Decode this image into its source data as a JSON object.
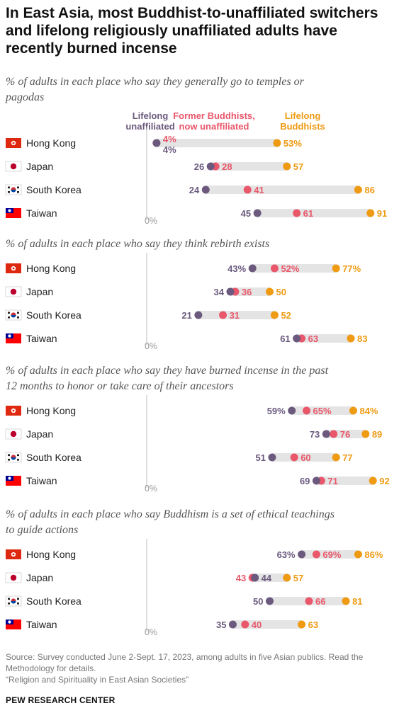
{
  "title": "In East Asia, most Buddhist-to-unaffiliated switchers and lifelong religiously unaffiliated adults have recently burned incense",
  "colors": {
    "lifelong_unaffiliated": "#6b5a7e",
    "former_buddhists": "#e9576a",
    "lifelong_buddhists": "#ee9a12",
    "range_bar": "#e4e4e4"
  },
  "legend": {
    "lifelong_unaffiliated": [
      "Lifelong",
      "unaffiliated"
    ],
    "former_buddhists": [
      "Former Buddhists,",
      "now unaffiliated"
    ],
    "lifelong_buddhists": [
      "Lifelong",
      "Buddhists"
    ]
  },
  "chart_data": [
    {
      "type": "dot",
      "subtitle": [
        "% of adults in each place who say they generally go to temples or",
        "pagodas"
      ],
      "axis_label": "0%",
      "series": [
        "Lifelong unaffiliated",
        "Former Buddhists, now unaffiliated",
        "Lifelong Buddhists"
      ],
      "rows": [
        {
          "place": "Hong Kong",
          "flag": "hong-kong",
          "values": [
            4,
            4,
            53
          ],
          "percent_labels": true
        },
        {
          "place": "Japan",
          "flag": "japan",
          "values": [
            26,
            28,
            57
          ]
        },
        {
          "place": "South Korea",
          "flag": "south-korea",
          "values": [
            24,
            41,
            86
          ]
        },
        {
          "place": "Taiwan",
          "flag": "taiwan",
          "values": [
            45,
            61,
            91
          ]
        }
      ]
    },
    {
      "type": "dot",
      "subtitle": [
        "% of adults in each place who say they think rebirth exists"
      ],
      "axis_label": "0%",
      "series": [
        "Lifelong unaffiliated",
        "Former Buddhists, now unaffiliated",
        "Lifelong Buddhists"
      ],
      "rows": [
        {
          "place": "Hong Kong",
          "flag": "hong-kong",
          "values": [
            43,
            52,
            77
          ],
          "percent_labels": true
        },
        {
          "place": "Japan",
          "flag": "japan",
          "values": [
            34,
            36,
            50
          ]
        },
        {
          "place": "South Korea",
          "flag": "south-korea",
          "values": [
            21,
            31,
            52
          ]
        },
        {
          "place": "Taiwan",
          "flag": "taiwan",
          "values": [
            61,
            63,
            83
          ]
        }
      ]
    },
    {
      "type": "dot",
      "subtitle": [
        "% of adults in each place who say they have burned incense in the past",
        "12 months to honor or take care of their ancestors"
      ],
      "axis_label": "0%",
      "series": [
        "Lifelong unaffiliated",
        "Former Buddhists, now unaffiliated",
        "Lifelong Buddhists"
      ],
      "rows": [
        {
          "place": "Hong Kong",
          "flag": "hong-kong",
          "values": [
            59,
            65,
            84
          ],
          "percent_labels": true
        },
        {
          "place": "Japan",
          "flag": "japan",
          "values": [
            73,
            76,
            89
          ]
        },
        {
          "place": "South Korea",
          "flag": "south-korea",
          "values": [
            51,
            60,
            77
          ]
        },
        {
          "place": "Taiwan",
          "flag": "taiwan",
          "values": [
            69,
            71,
            92
          ]
        }
      ]
    },
    {
      "type": "dot",
      "subtitle": [
        "% of adults in each place who say Buddhism is a set of ethical teachings",
        "to guide actions"
      ],
      "axis_label": "0%",
      "series": [
        "Lifelong unaffiliated",
        "Former Buddhists, now unaffiliated",
        "Lifelong Buddhists"
      ],
      "rows": [
        {
          "place": "Hong Kong",
          "flag": "hong-kong",
          "values": [
            63,
            69,
            86
          ],
          "percent_labels": true
        },
        {
          "place": "Japan",
          "flag": "japan",
          "values": [
            44,
            43,
            57
          ]
        },
        {
          "place": "South Korea",
          "flag": "south-korea",
          "values": [
            50,
            66,
            81
          ]
        },
        {
          "place": "Taiwan",
          "flag": "taiwan",
          "values": [
            35,
            40,
            63
          ]
        }
      ]
    }
  ],
  "footer": {
    "source": "Source: Survey conducted June 2-Sept. 17, 2023, among adults in five Asian publics. Read the Methodology for details.",
    "report": "“Religion and Spirituality in East Asian Societies”",
    "brand": "PEW RESEARCH CENTER"
  }
}
